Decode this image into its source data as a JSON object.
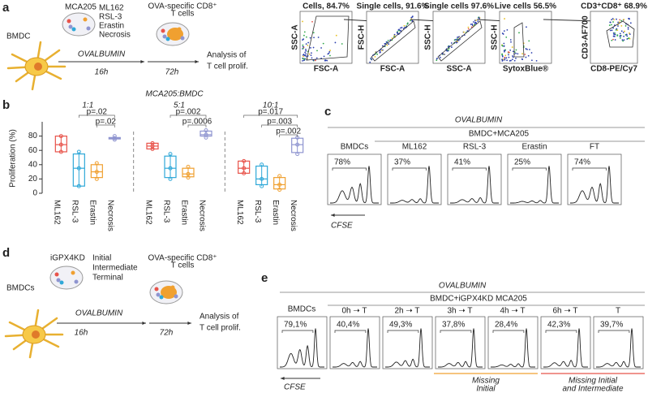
{
  "panel_a": {
    "label": "a",
    "cell": "BMDC",
    "tumor": "MCA205",
    "treatments": [
      "ML162",
      "RSL-3",
      "Erastin",
      "Necrosis"
    ],
    "antigen": "OVALBUMIN",
    "time1": "16h",
    "tcells": [
      "OVA-specific CD8⁺",
      "T cells"
    ],
    "time2": "72h",
    "analysis": [
      "Analysis of",
      "T cell prolif."
    ],
    "gates": [
      {
        "title": "Cells, 84.7%",
        "x": "FSC-A",
        "y": "SSC-A"
      },
      {
        "title": "Single cells, 91.6%",
        "x": "FSC-A",
        "y": "FSC-H"
      },
      {
        "title": "Single cells 97.6%",
        "x": "SSC-A",
        "y": "SSC-H"
      },
      {
        "title": "Live cells 56.5%",
        "x": "SytoxBlue®",
        "y": "SSC-H"
      },
      {
        "title": "CD3⁺CD8⁺ 68.9%",
        "x": "CD8-PE/Cy7",
        "y": "CD3-AF700"
      }
    ]
  },
  "panel_b": {
    "label": "b"
  },
  "chart_data": {
    "type": "box",
    "title": "MCA205:BMDC",
    "ylabel": "Proliferation (%)",
    "ylim": [
      0,
      100
    ],
    "yticks": [
      0,
      20,
      40,
      60,
      80
    ],
    "groups": [
      "1:1",
      "5:1",
      "10:1"
    ],
    "series": [
      {
        "name": "ML162",
        "color": "#e8534a",
        "boxes": [
          [
            58,
            58,
            68,
            80,
            80
          ],
          [
            62,
            62,
            66,
            70,
            70
          ],
          [
            28,
            28,
            35,
            45,
            45
          ]
        ]
      },
      {
        "name": "RSL-3",
        "color": "#2fa8d8",
        "boxes": [
          [
            10,
            10,
            35,
            55,
            58
          ],
          [
            20,
            22,
            35,
            52,
            55
          ],
          [
            10,
            12,
            20,
            38,
            40
          ]
        ]
      },
      {
        "name": "Erastin",
        "color": "#f0a030",
        "boxes": [
          [
            20,
            22,
            30,
            40,
            42
          ],
          [
            22,
            23,
            27,
            35,
            37
          ],
          [
            5,
            6,
            12,
            22,
            24
          ]
        ]
      },
      {
        "name": "Necrosis",
        "color": "#8f95d0",
        "boxes": [
          [
            75,
            76,
            77,
            78,
            80
          ],
          [
            78,
            80,
            82,
            87,
            88
          ],
          [
            55,
            57,
            68,
            77,
            78
          ]
        ]
      }
    ],
    "pvalues": [
      [
        "p=.02",
        "p=.02"
      ],
      [
        "p=.002",
        "p=.0006"
      ],
      [
        "p=.017",
        "p=.003",
        "p=.002"
      ]
    ]
  },
  "panel_c": {
    "label": "c",
    "antigen": "OVALBUMIN",
    "group": "BMDC+MCA205",
    "histograms": [
      {
        "title": "BMDCs",
        "percent": "78%"
      },
      {
        "title": "ML162",
        "percent": "37%"
      },
      {
        "title": "RSL-3",
        "percent": "41%"
      },
      {
        "title": "Erastin",
        "percent": "25%"
      },
      {
        "title": "FT",
        "percent": "74%"
      }
    ],
    "axis": "CFSE"
  },
  "panel_d": {
    "label": "d",
    "cell": "BMDCs",
    "tumor": "iGPX4KD",
    "phases": [
      "Initial",
      "Intermediate",
      "Terminal"
    ],
    "antigen": "OVALBUMIN",
    "time1": "16h",
    "tcells": [
      "OVA-specific CD8⁺",
      "T cells"
    ],
    "time2": "72h",
    "analysis": [
      "Analysis of",
      "T cell prolif."
    ]
  },
  "panel_e": {
    "label": "e",
    "antigen": "OVALBUMIN",
    "group": "BMDC+iGPX4KD MCA205",
    "histograms": [
      {
        "title": "BMDCs",
        "percent": "79,1%"
      },
      {
        "title": "0h ➝ T",
        "percent": "40,4%"
      },
      {
        "title": "2h ➝ T",
        "percent": "49,3%"
      },
      {
        "title": "3h ➝ T",
        "percent": "37,8%"
      },
      {
        "title": "4h ➝ T",
        "percent": "28,4%"
      },
      {
        "title": "6h ➝ T",
        "percent": "42,3%"
      },
      {
        "title": "T",
        "percent": "39,7%"
      }
    ],
    "notes": [
      [
        "Missing",
        "Initial"
      ],
      [
        "Missing Initial",
        "and Intermediate"
      ]
    ],
    "axis": "CFSE"
  }
}
